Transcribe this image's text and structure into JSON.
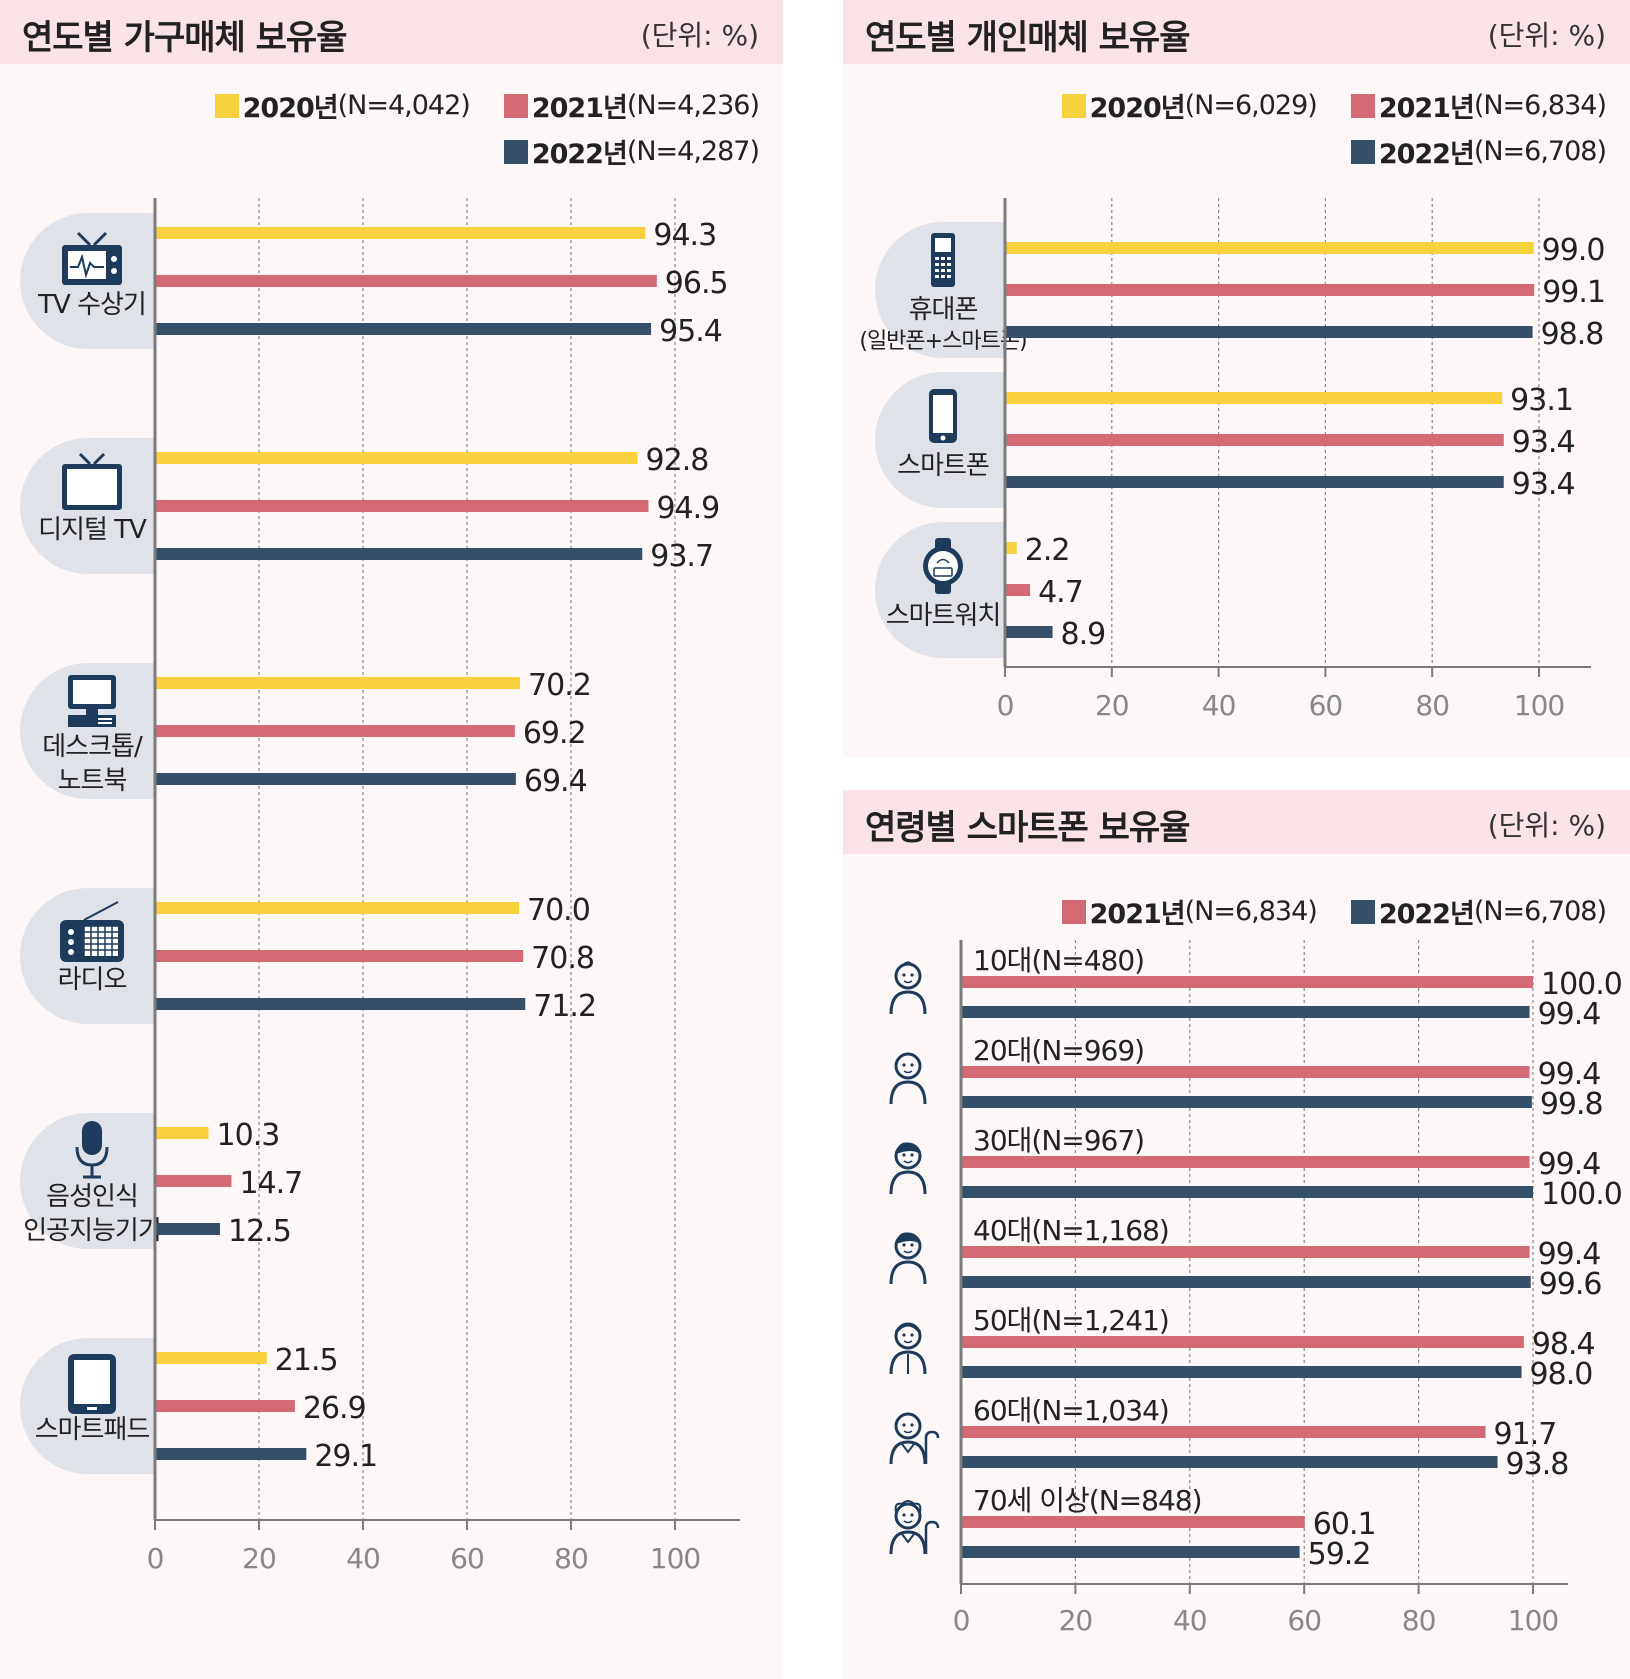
{
  "colors": {
    "y2020": "#f9d03e",
    "y2021": "#d46a76",
    "y2022": "#37506a",
    "grid": "#8a8a8a",
    "axis": "#7b7b7b",
    "bubble": "#dfe2e8",
    "icon": "#1f3b5c",
    "header_bg": "#fae3e6",
    "panel_bg": "#fdf8f7"
  },
  "household": {
    "title": "연도별 가구매체 보유율",
    "unit": "(단위: %)",
    "legend": [
      {
        "year": "2020년",
        "n": "(N=4,042)",
        "color": "#f9d03e"
      },
      {
        "year": "2021년",
        "n": "(N=4,236)",
        "color": "#d46a76"
      },
      {
        "year": "2022년",
        "n": "(N=4,287)",
        "color": "#37506a"
      }
    ]
  },
  "personal": {
    "title": "연도별 개인매체 보유율",
    "unit": "(단위: %)",
    "legend": [
      {
        "year": "2020년",
        "n": "(N=6,029)",
        "color": "#f9d03e"
      },
      {
        "year": "2021년",
        "n": "(N=6,834)",
        "color": "#d46a76"
      },
      {
        "year": "2022년",
        "n": "(N=6,708)",
        "color": "#37506a"
      }
    ]
  },
  "age": {
    "title": "연령별 스마트폰 보유율",
    "unit": "(단위: %)",
    "legend": [
      {
        "year": "2021년",
        "n": "(N=6,834)",
        "color": "#d46a76"
      },
      {
        "year": "2022년",
        "n": "(N=6,708)",
        "color": "#37506a"
      }
    ]
  },
  "chart_data": [
    {
      "type": "bar",
      "orientation": "horizontal",
      "title": "연도별 가구매체 보유율",
      "unit": "(단위: %)",
      "categories": [
        {
          "lines": [
            "TV 수상기"
          ],
          "icon": "tv-icon"
        },
        {
          "lines": [
            "디지털 TV"
          ],
          "icon": "digital-tv-icon"
        },
        {
          "lines": [
            "데스크톱/",
            "노트북"
          ],
          "icon": "desktop-computer-icon"
        },
        {
          "lines": [
            "라디오"
          ],
          "icon": "radio-icon"
        },
        {
          "lines": [
            "음성인식",
            "인공지능기기"
          ],
          "icon": "microphone-icon"
        },
        {
          "lines": [
            "스마트패드"
          ],
          "icon": "tablet-icon"
        }
      ],
      "series": [
        {
          "name": "2020년",
          "color": "#f9d03e",
          "values": [
            94.3,
            92.8,
            70.2,
            70.0,
            10.3,
            21.5
          ],
          "labels": [
            "94.3",
            "92.8",
            "70.2",
            "70.0",
            "10.3",
            "21.5"
          ]
        },
        {
          "name": "2021년",
          "color": "#d46a76",
          "values": [
            96.5,
            94.9,
            69.2,
            70.8,
            14.7,
            26.9
          ],
          "labels": [
            "96.5",
            "94.9",
            "69.2",
            "70.8",
            "14.7",
            "26.9"
          ]
        },
        {
          "name": "2022년",
          "color": "#37506a",
          "values": [
            95.4,
            93.7,
            69.4,
            71.2,
            12.5,
            29.1
          ],
          "labels": [
            "95.4",
            "93.7",
            "69.4",
            "71.2",
            "12.5",
            "29.1"
          ]
        }
      ],
      "xlim": [
        0,
        100
      ],
      "xticks": [
        "0",
        "20",
        "40",
        "60",
        "80",
        "100"
      ],
      "grid": true
    },
    {
      "type": "bar",
      "orientation": "horizontal",
      "title": "연도별 개인매체 보유율",
      "unit": "(단위: %)",
      "categories": [
        {
          "lines": [
            "휴대폰",
            "(일반폰+스마트폰)"
          ],
          "icon": "mobile-phone-icon"
        },
        {
          "lines": [
            "스마트폰"
          ],
          "icon": "smartphone-icon"
        },
        {
          "lines": [
            "스마트워치"
          ],
          "icon": "smartwatch-icon"
        }
      ],
      "series": [
        {
          "name": "2020년",
          "color": "#f9d03e",
          "values": [
            99.0,
            93.1,
            2.2
          ],
          "labels": [
            "99.0",
            "93.1",
            "2.2"
          ]
        },
        {
          "name": "2021년",
          "color": "#d46a76",
          "values": [
            99.1,
            93.4,
            4.7
          ],
          "labels": [
            "99.1",
            "93.4",
            "4.7"
          ]
        },
        {
          "name": "2022년",
          "color": "#37506a",
          "values": [
            98.8,
            93.4,
            8.9
          ],
          "labels": [
            "98.8",
            "93.4",
            "8.9"
          ]
        }
      ],
      "xlim": [
        0,
        100
      ],
      "xticks": [
        "0",
        "20",
        "40",
        "60",
        "80",
        "100"
      ],
      "grid": true
    },
    {
      "type": "bar",
      "orientation": "horizontal",
      "title": "연령별 스마트폰 보유율",
      "unit": "(단위: %)",
      "categories": [
        {
          "label": "10대(N=480)",
          "icon": "teen-person-icon"
        },
        {
          "label": "20대(N=969)",
          "icon": "young-adult-person-icon"
        },
        {
          "label": "30대(N=967)",
          "icon": "adult-person-icon"
        },
        {
          "label": "40대(N=1,168)",
          "icon": "middle-aged-person-icon"
        },
        {
          "label": "50대(N=1,241)",
          "icon": "fifties-person-icon"
        },
        {
          "label": "60대(N=1,034)",
          "icon": "senior-person-icon"
        },
        {
          "label": "70세 이상(N=848)",
          "icon": "elderly-person-icon"
        }
      ],
      "series": [
        {
          "name": "2021년",
          "color": "#d46a76",
          "values": [
            100.0,
            99.4,
            99.4,
            99.4,
            98.4,
            91.7,
            60.1
          ],
          "labels": [
            "100.0",
            "99.4",
            "99.4",
            "99.4",
            "98.4",
            "91.7",
            "60.1"
          ]
        },
        {
          "name": "2022년",
          "color": "#37506a",
          "values": [
            99.4,
            99.8,
            100.0,
            99.6,
            98.0,
            93.8,
            59.2
          ],
          "labels": [
            "99.4",
            "99.8",
            "100.0",
            "99.6",
            "98.0",
            "93.8",
            "59.2"
          ]
        }
      ],
      "xlim": [
        0,
        100
      ],
      "xticks": [
        "0",
        "20",
        "40",
        "60",
        "80",
        "100"
      ],
      "grid": true
    }
  ]
}
